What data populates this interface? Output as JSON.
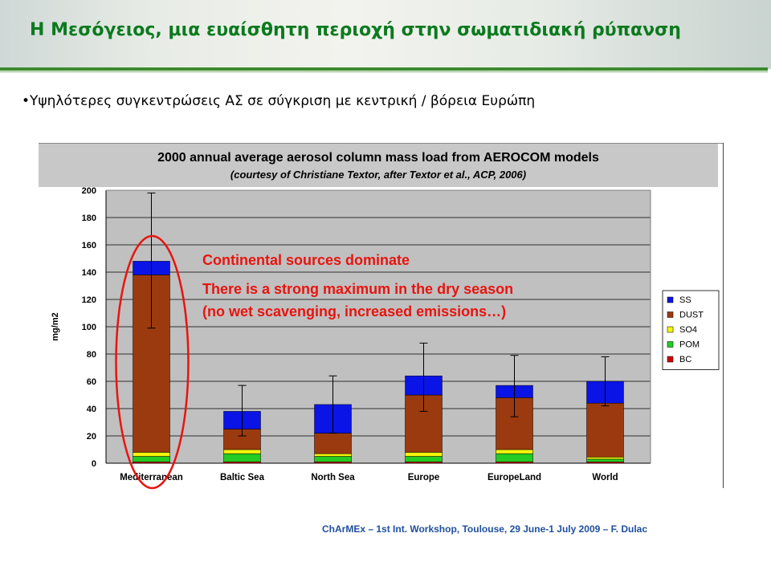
{
  "slide": {
    "title": "Η Μεσόγειος, μια ευαίσθητη περιοχή στην σωματιδιακή ρύπανση",
    "bullet": "•Υψηλότερες συγκεντρώσεις ΑΣ σε σύγκριση με κεντρική / βόρεια Ευρώπη",
    "footer": "ChArMEx – 1st Int. Workshop, Toulouse, 29 June-1 July 2009 – F. Dulac",
    "accent_color": "#0b7a1e"
  },
  "chart_data": {
    "type": "bar",
    "stacked": true,
    "title": "2000 annual average aerosol column mass load from AEROCOM models",
    "subtitle": "(courtesy of Christiane Textor, after Textor et al., ACP, 2006)",
    "ylabel": "mg/m2",
    "xlabel": "",
    "ylim": [
      0,
      200
    ],
    "yticks": [
      "0",
      "20",
      "40",
      "60",
      "80",
      "100",
      "120",
      "140",
      "160",
      "180",
      "200"
    ],
    "grid": true,
    "legend_position": "right",
    "categories": [
      "Mediterranean",
      "Baltic Sea",
      "North Sea",
      "Europe",
      "EuropeLand",
      "World"
    ],
    "series": [
      {
        "name": "BC",
        "color": "#d00000",
        "values": [
          1,
          1,
          1,
          1,
          1,
          1
        ]
      },
      {
        "name": "POM",
        "color": "#22cc22",
        "values": [
          4,
          6,
          4,
          4,
          6,
          2
        ]
      },
      {
        "name": "SO4",
        "color": "#f5f50a",
        "values": [
          3,
          3,
          2,
          3,
          3,
          1.5
        ]
      },
      {
        "name": "DUST",
        "color": "#9b3a0e",
        "values": [
          130,
          15,
          15,
          42,
          38,
          39.5
        ]
      },
      {
        "name": "SS",
        "color": "#0a14e6",
        "values": [
          10,
          13,
          21,
          14,
          9,
          16
        ]
      }
    ],
    "legend_order": [
      "SS",
      "DUST",
      "SO4",
      "POM",
      "BC"
    ],
    "error_bars": [
      [
        99,
        198
      ],
      [
        20,
        57
      ],
      [
        22,
        64
      ],
      [
        38,
        88
      ],
      [
        34,
        79
      ],
      [
        42,
        78
      ]
    ],
    "annotations": [
      "Continental sources dominate",
      "There is a strong maximum in the dry season",
      "(no wet scavenging, increased emissions…)"
    ],
    "annotation_color": "#e8140f",
    "highlight_category": "Mediterranean"
  }
}
